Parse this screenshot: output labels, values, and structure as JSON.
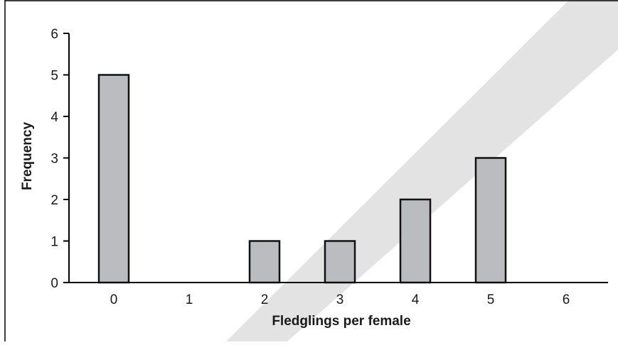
{
  "chart_data": {
    "type": "bar",
    "categories": [
      "0",
      "1",
      "2",
      "3",
      "4",
      "5",
      "6"
    ],
    "values": [
      5,
      0,
      1,
      1,
      2,
      3,
      0
    ],
    "title": "",
    "xlabel": "Fledglings per female",
    "ylabel": "Frequency",
    "ylim": [
      0,
      6
    ],
    "yticks": [
      "0",
      "1",
      "2",
      "3",
      "4",
      "5",
      "6"
    ],
    "grid": false,
    "legend": "none",
    "bar_color": "#bbbcc0",
    "bar_edge_color": "#111111",
    "watermark_color": "#e3e3e3"
  }
}
